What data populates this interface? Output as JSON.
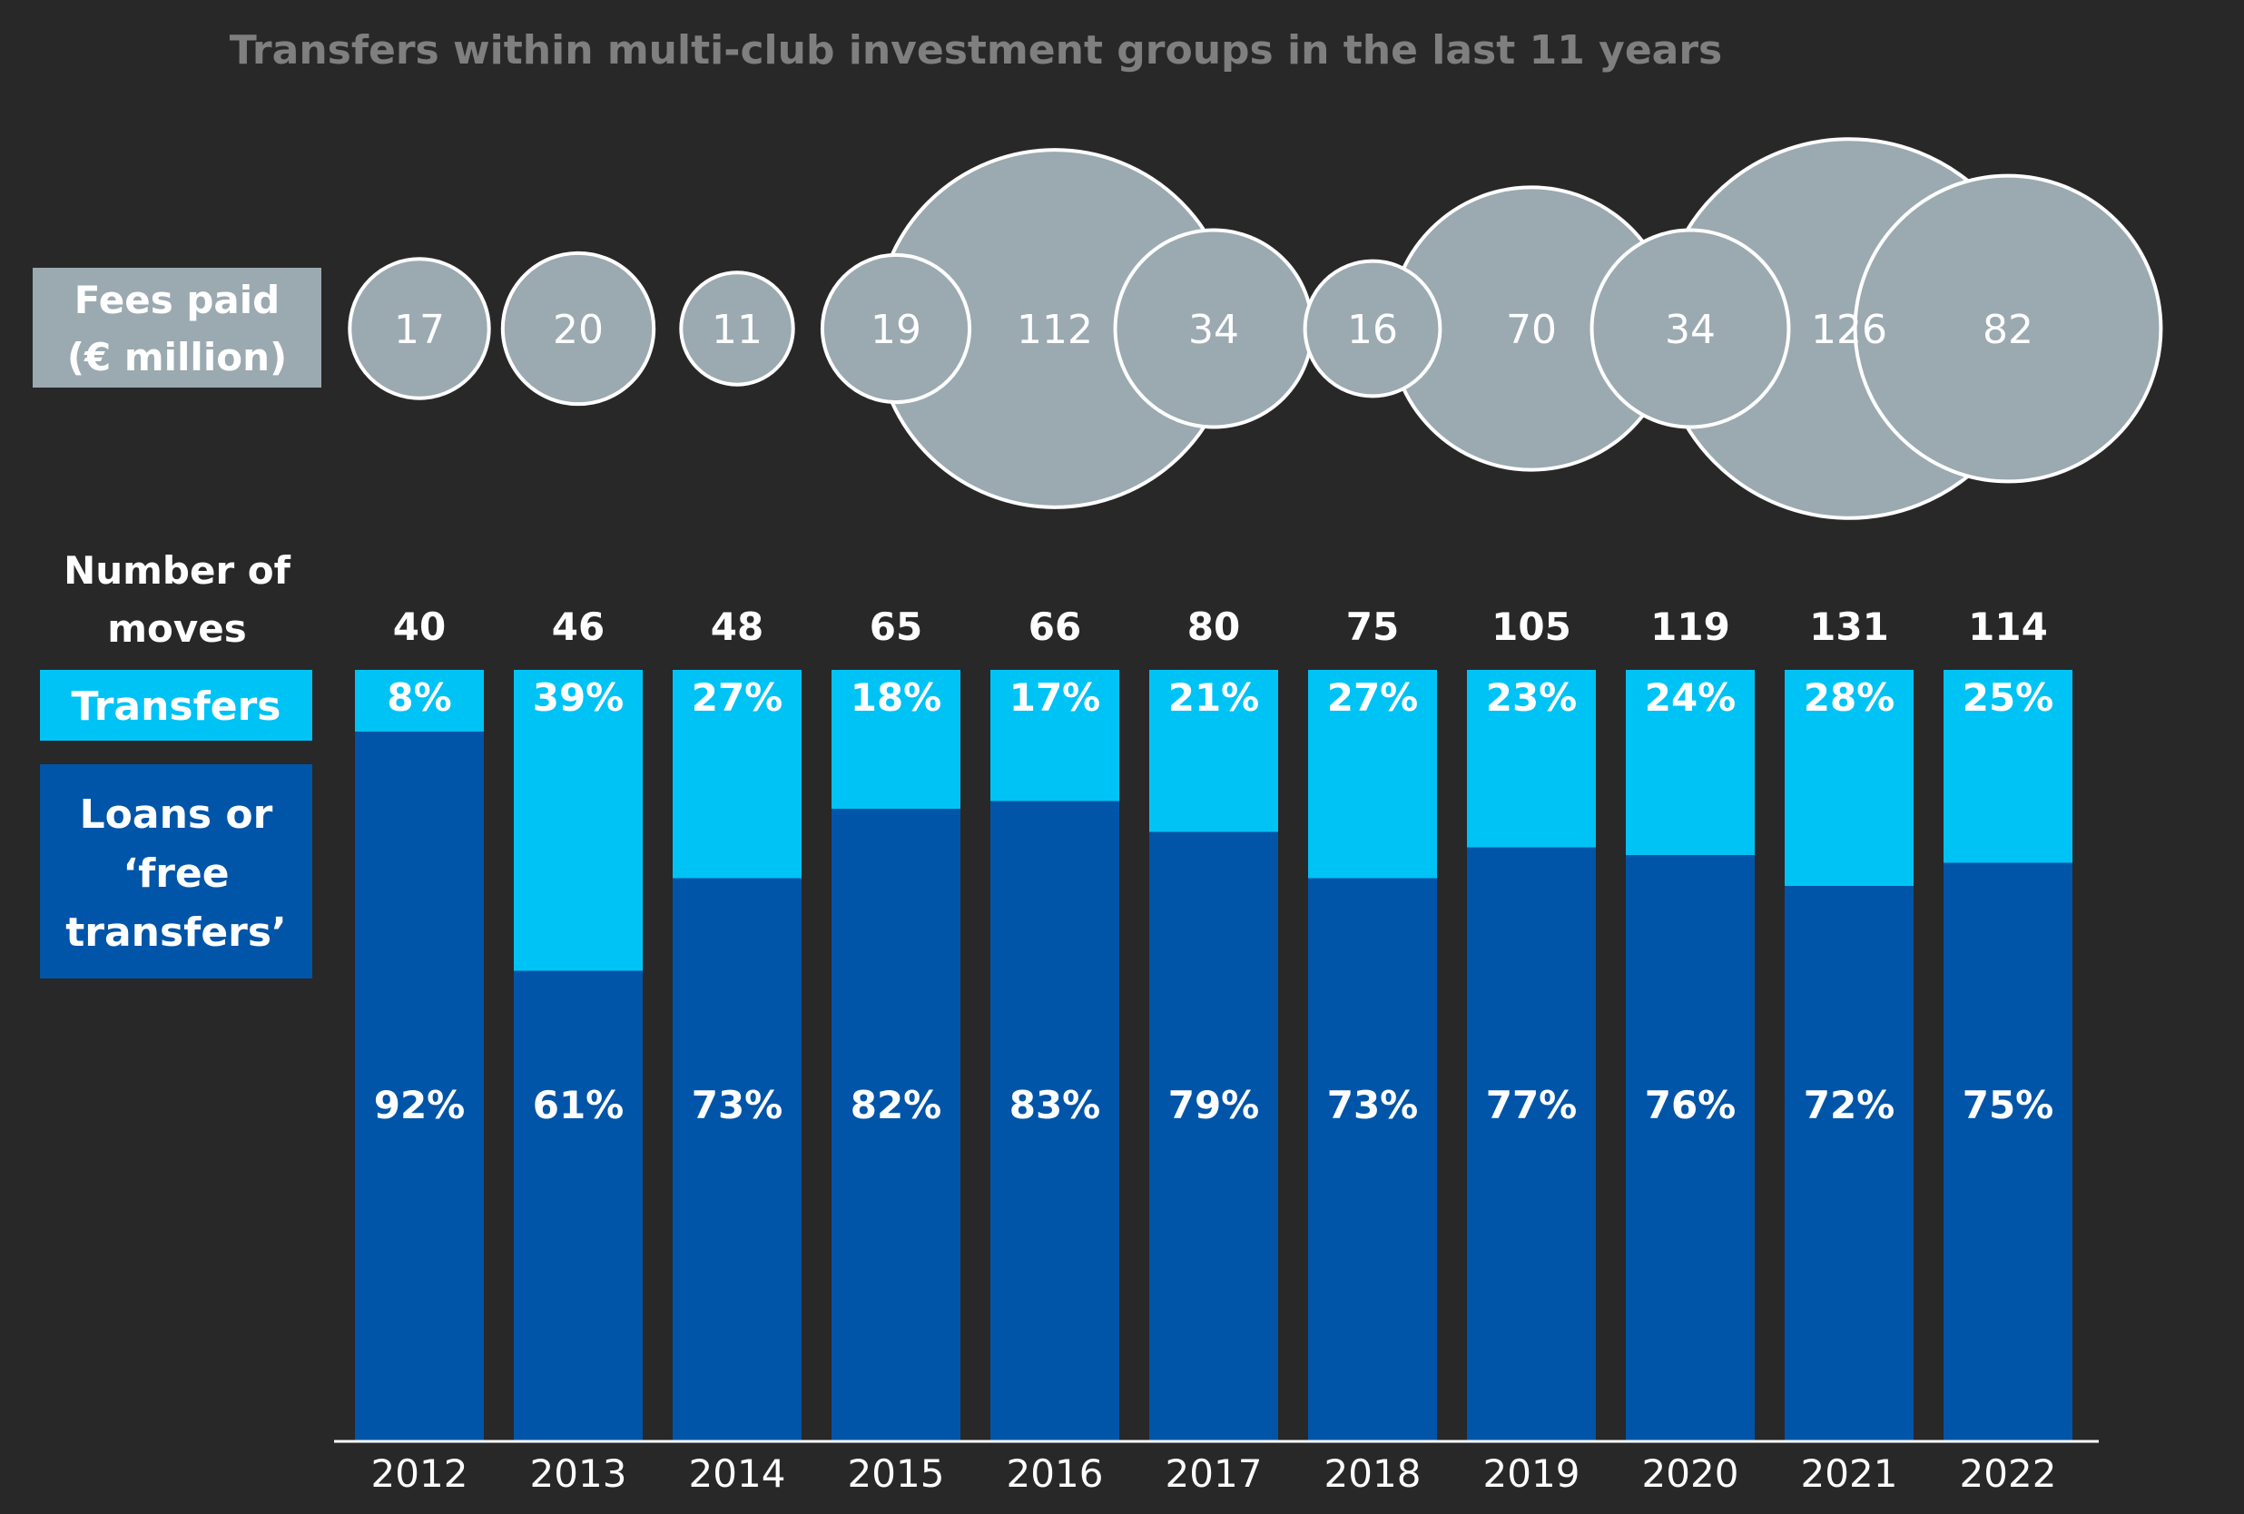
{
  "chart_data": {
    "type": "bar",
    "stacked": "percent",
    "title": "Transfers within multi-club investment groups in the last 11 years",
    "categories": [
      "2012",
      "2013",
      "2014",
      "2015",
      "2016",
      "2017",
      "2018",
      "2019",
      "2020",
      "2021",
      "2022"
    ],
    "fees": {
      "label_line1": "Fees paid",
      "label_line2": "(€ million)",
      "values": [
        17,
        20,
        11,
        19,
        112,
        34,
        16,
        70,
        34,
        126,
        82
      ]
    },
    "moves": {
      "label_line1": "Number of",
      "label_line2": "moves",
      "values": [
        40,
        46,
        48,
        65,
        66,
        80,
        75,
        105,
        119,
        131,
        114
      ]
    },
    "series": [
      {
        "name": "Transfers",
        "values": [
          8,
          39,
          27,
          18,
          17,
          21,
          27,
          23,
          24,
          28,
          25
        ],
        "color": "#00c3f5"
      },
      {
        "name": "Loans or ‘free transfers’",
        "name_lines": [
          "Loans or",
          "‘free",
          "transfers’"
        ],
        "values": [
          92,
          61,
          73,
          82,
          83,
          79,
          73,
          77,
          76,
          72,
          75
        ],
        "color": "#0055a8"
      }
    ],
    "ylim": [
      0,
      100
    ],
    "colors": {
      "background": "#282828",
      "bubble": "#9ba9b1",
      "bubble_stroke": "#ffffff",
      "title": "#7f7f7f",
      "text": "#ffffff"
    }
  }
}
